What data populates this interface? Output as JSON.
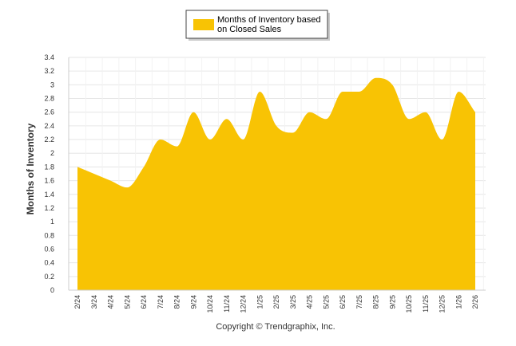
{
  "chart_data": {
    "type": "area",
    "title": "",
    "xlabel": "",
    "ylabel": "Months of Inventory",
    "ylim": [
      0,
      3.4
    ],
    "yticks": [
      0,
      0.2,
      0.4,
      0.6,
      0.8,
      1,
      1.2,
      1.4,
      1.6,
      1.8,
      2,
      2.2,
      2.4,
      2.6,
      2.8,
      3,
      3.2,
      3.4
    ],
    "ytick_labels": [
      "0",
      "0.2",
      "0.4",
      "0.6",
      "0.8",
      "1",
      "1.2",
      "1.4",
      "1.6",
      "1.8",
      "2",
      "2.2",
      "2.4",
      "2.6",
      "2.8",
      "3",
      "3.2",
      "3.4"
    ],
    "categories": [
      "2/24",
      "3/24",
      "4/24",
      "5/24",
      "6/24",
      "7/24",
      "8/24",
      "9/24",
      "10/24",
      "11/24",
      "12/24",
      "1/25",
      "2/25",
      "3/25",
      "4/25",
      "5/25",
      "6/25",
      "7/25",
      "8/25",
      "9/25",
      "10/25",
      "11/25",
      "12/25",
      "1/26",
      "2/26"
    ],
    "series": [
      {
        "name": "Months of Inventory based on Closed Sales",
        "values": [
          1.8,
          1.7,
          1.6,
          1.5,
          1.8,
          2.2,
          2.1,
          2.6,
          2.2,
          2.5,
          2.2,
          2.9,
          2.4,
          2.3,
          2.6,
          2.5,
          2.9,
          2.9,
          3.1,
          3.0,
          2.5,
          2.6,
          2.2,
          2.9,
          2.6
        ],
        "color": "#F8C304"
      }
    ],
    "legend": {
      "position": "top-center",
      "label_line1": "Months of Inventory based",
      "label_line2": "on Closed Sales"
    },
    "grid": true,
    "copyright": "Copyright © Trendgraphix, Inc."
  },
  "colors": {
    "area_fill": "#F8C304",
    "grid": "#E6E6E6",
    "axis": "#CCCCCC",
    "text": "#333333"
  }
}
